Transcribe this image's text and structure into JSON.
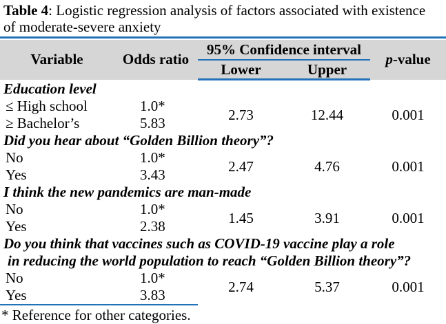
{
  "title": {
    "bold": "Table 4",
    "rest": ": Logistic regression analysis of factors associated with existence of moderate-severe anxiety"
  },
  "header": {
    "variable": "Variable",
    "odds_ratio": "Odds ratio",
    "ci": "95% Confidence interval",
    "lower": "Lower",
    "upper": "Upper",
    "p_italic": "p",
    "p_rest": "-value"
  },
  "sections": [
    {
      "heading": "Education level",
      "rows": [
        {
          "label": "≤ High school",
          "odds_ratio": "1.0*"
        },
        {
          "label": "≥ Bachelor’s",
          "odds_ratio": "5.83"
        }
      ],
      "lower": "2.73",
      "upper": "12.44",
      "p_value": "0.001"
    },
    {
      "heading": "Did you hear about “Golden Billion theory”?",
      "rows": [
        {
          "label": "No",
          "odds_ratio": "1.0*"
        },
        {
          "label": "Yes",
          "odds_ratio": "3.43"
        }
      ],
      "lower": "2.47",
      "upper": "4.76",
      "p_value": "0.001"
    },
    {
      "heading": "I think the new pandemics are man-made",
      "rows": [
        {
          "label": "No",
          "odds_ratio": "1.0*"
        },
        {
          "label": "Yes",
          "odds_ratio": "2.38"
        }
      ],
      "lower": "1.45",
      "upper": "3.91",
      "p_value": "0.001"
    },
    {
      "heading": "Do you think that vaccines such as COVID-19 vaccine play a role",
      "heading_line2": "in reducing the world population to reach “Golden Billion theory”?",
      "rows": [
        {
          "label": "No",
          "odds_ratio": "1.0*"
        },
        {
          "label": "Yes",
          "odds_ratio": "3.83"
        }
      ],
      "lower": "2.74",
      "upper": "5.37",
      "p_value": "0.001"
    }
  ],
  "footnote": "* Reference for other categories.",
  "colors": {
    "rule_blue": "#2272b9",
    "header_bg": "#d6d6d6"
  }
}
